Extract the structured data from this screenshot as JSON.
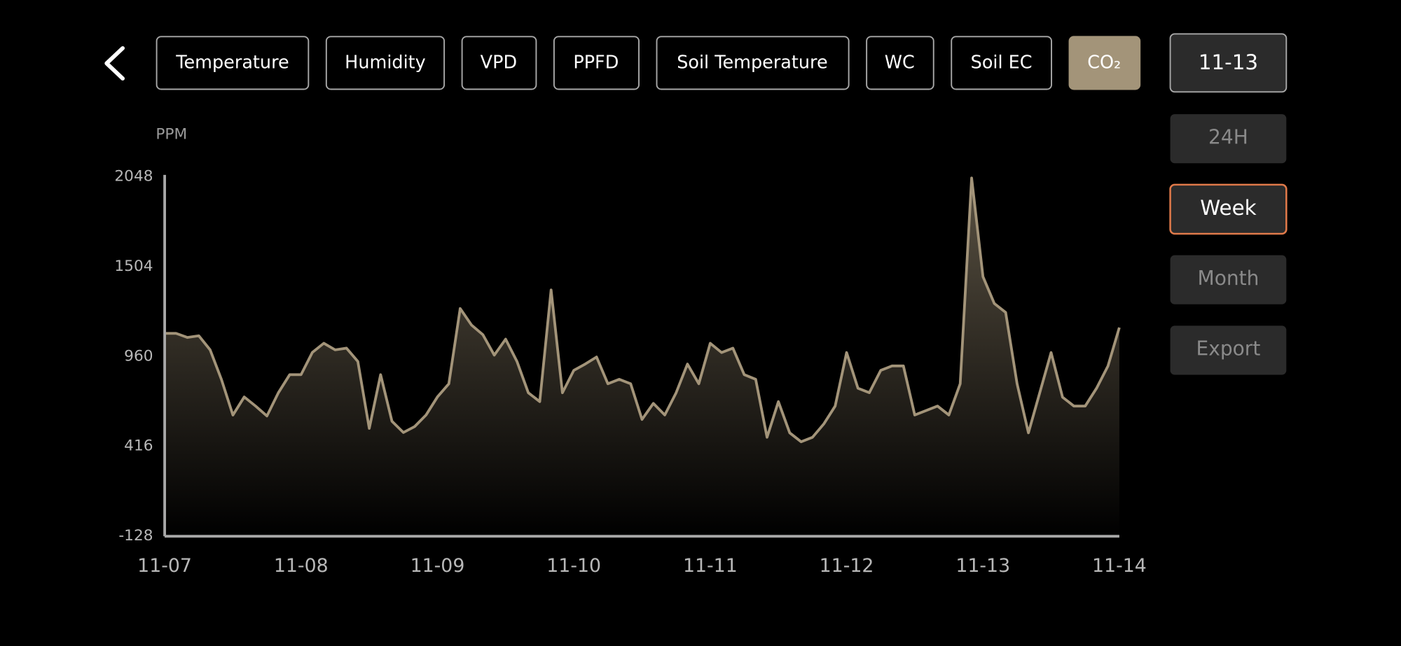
{
  "tabs": [
    "Temperature",
    "Humidity",
    "VPD",
    "PPFD",
    "Soil Temperature",
    "WC",
    "Soil EC",
    "CO₂"
  ],
  "date": "11-13",
  "ranges": [
    "24H",
    "Week",
    "Month"
  ],
  "export": "Export",
  "chart_data": {
    "type": "area",
    "y_label": "PPM",
    "color": "#a39479",
    "categories": [
      "11-07",
      null,
      null,
      null,
      null,
      null,
      null,
      null,
      null,
      null,
      null,
      null,
      "11-08",
      null,
      null,
      null,
      null,
      null,
      null,
      null,
      null,
      null,
      null,
      null,
      "11-09",
      null,
      null,
      null,
      null,
      null,
      null,
      null,
      null,
      null,
      null,
      null,
      "11-10",
      null,
      null,
      null,
      null,
      null,
      null,
      null,
      null,
      null,
      null,
      null,
      "11-11",
      null,
      null,
      null,
      null,
      null,
      null,
      null,
      null,
      null,
      null,
      null,
      "11-12",
      null,
      null,
      null,
      null,
      null,
      null,
      null,
      null,
      null,
      null,
      null,
      "11-13",
      null,
      null,
      null,
      null,
      null,
      null,
      null,
      null,
      null,
      null,
      null,
      "11-14"
    ],
    "values": [
      1100,
      1100,
      1075,
      1085,
      1000,
      820,
      605,
      715,
      660,
      600,
      740,
      850,
      850,
      985,
      1040,
      1000,
      1010,
      930,
      525,
      850,
      568,
      500,
      536,
      606,
      715,
      795,
      1250,
      1150,
      1092,
      968,
      1065,
      930,
      740,
      687,
      1362,
      740,
      876,
      914,
      957,
      795,
      822,
      795,
      579,
      676,
      606,
      740,
      914,
      795,
      1040,
      984,
      1010,
      850,
      822,
      471,
      687,
      498,
      444,
      471,
      552,
      660,
      984,
      768,
      741,
      876,
      903,
      903,
      606,
      633,
      660,
      606,
      795,
      2040,
      1443,
      1281,
      1227,
      795,
      498,
      741,
      984,
      714,
      660,
      660,
      768,
      903,
      1135
    ],
    "ylim": [
      -128,
      2048
    ],
    "yticks": [
      2048,
      1504,
      960,
      416,
      -128
    ]
  }
}
